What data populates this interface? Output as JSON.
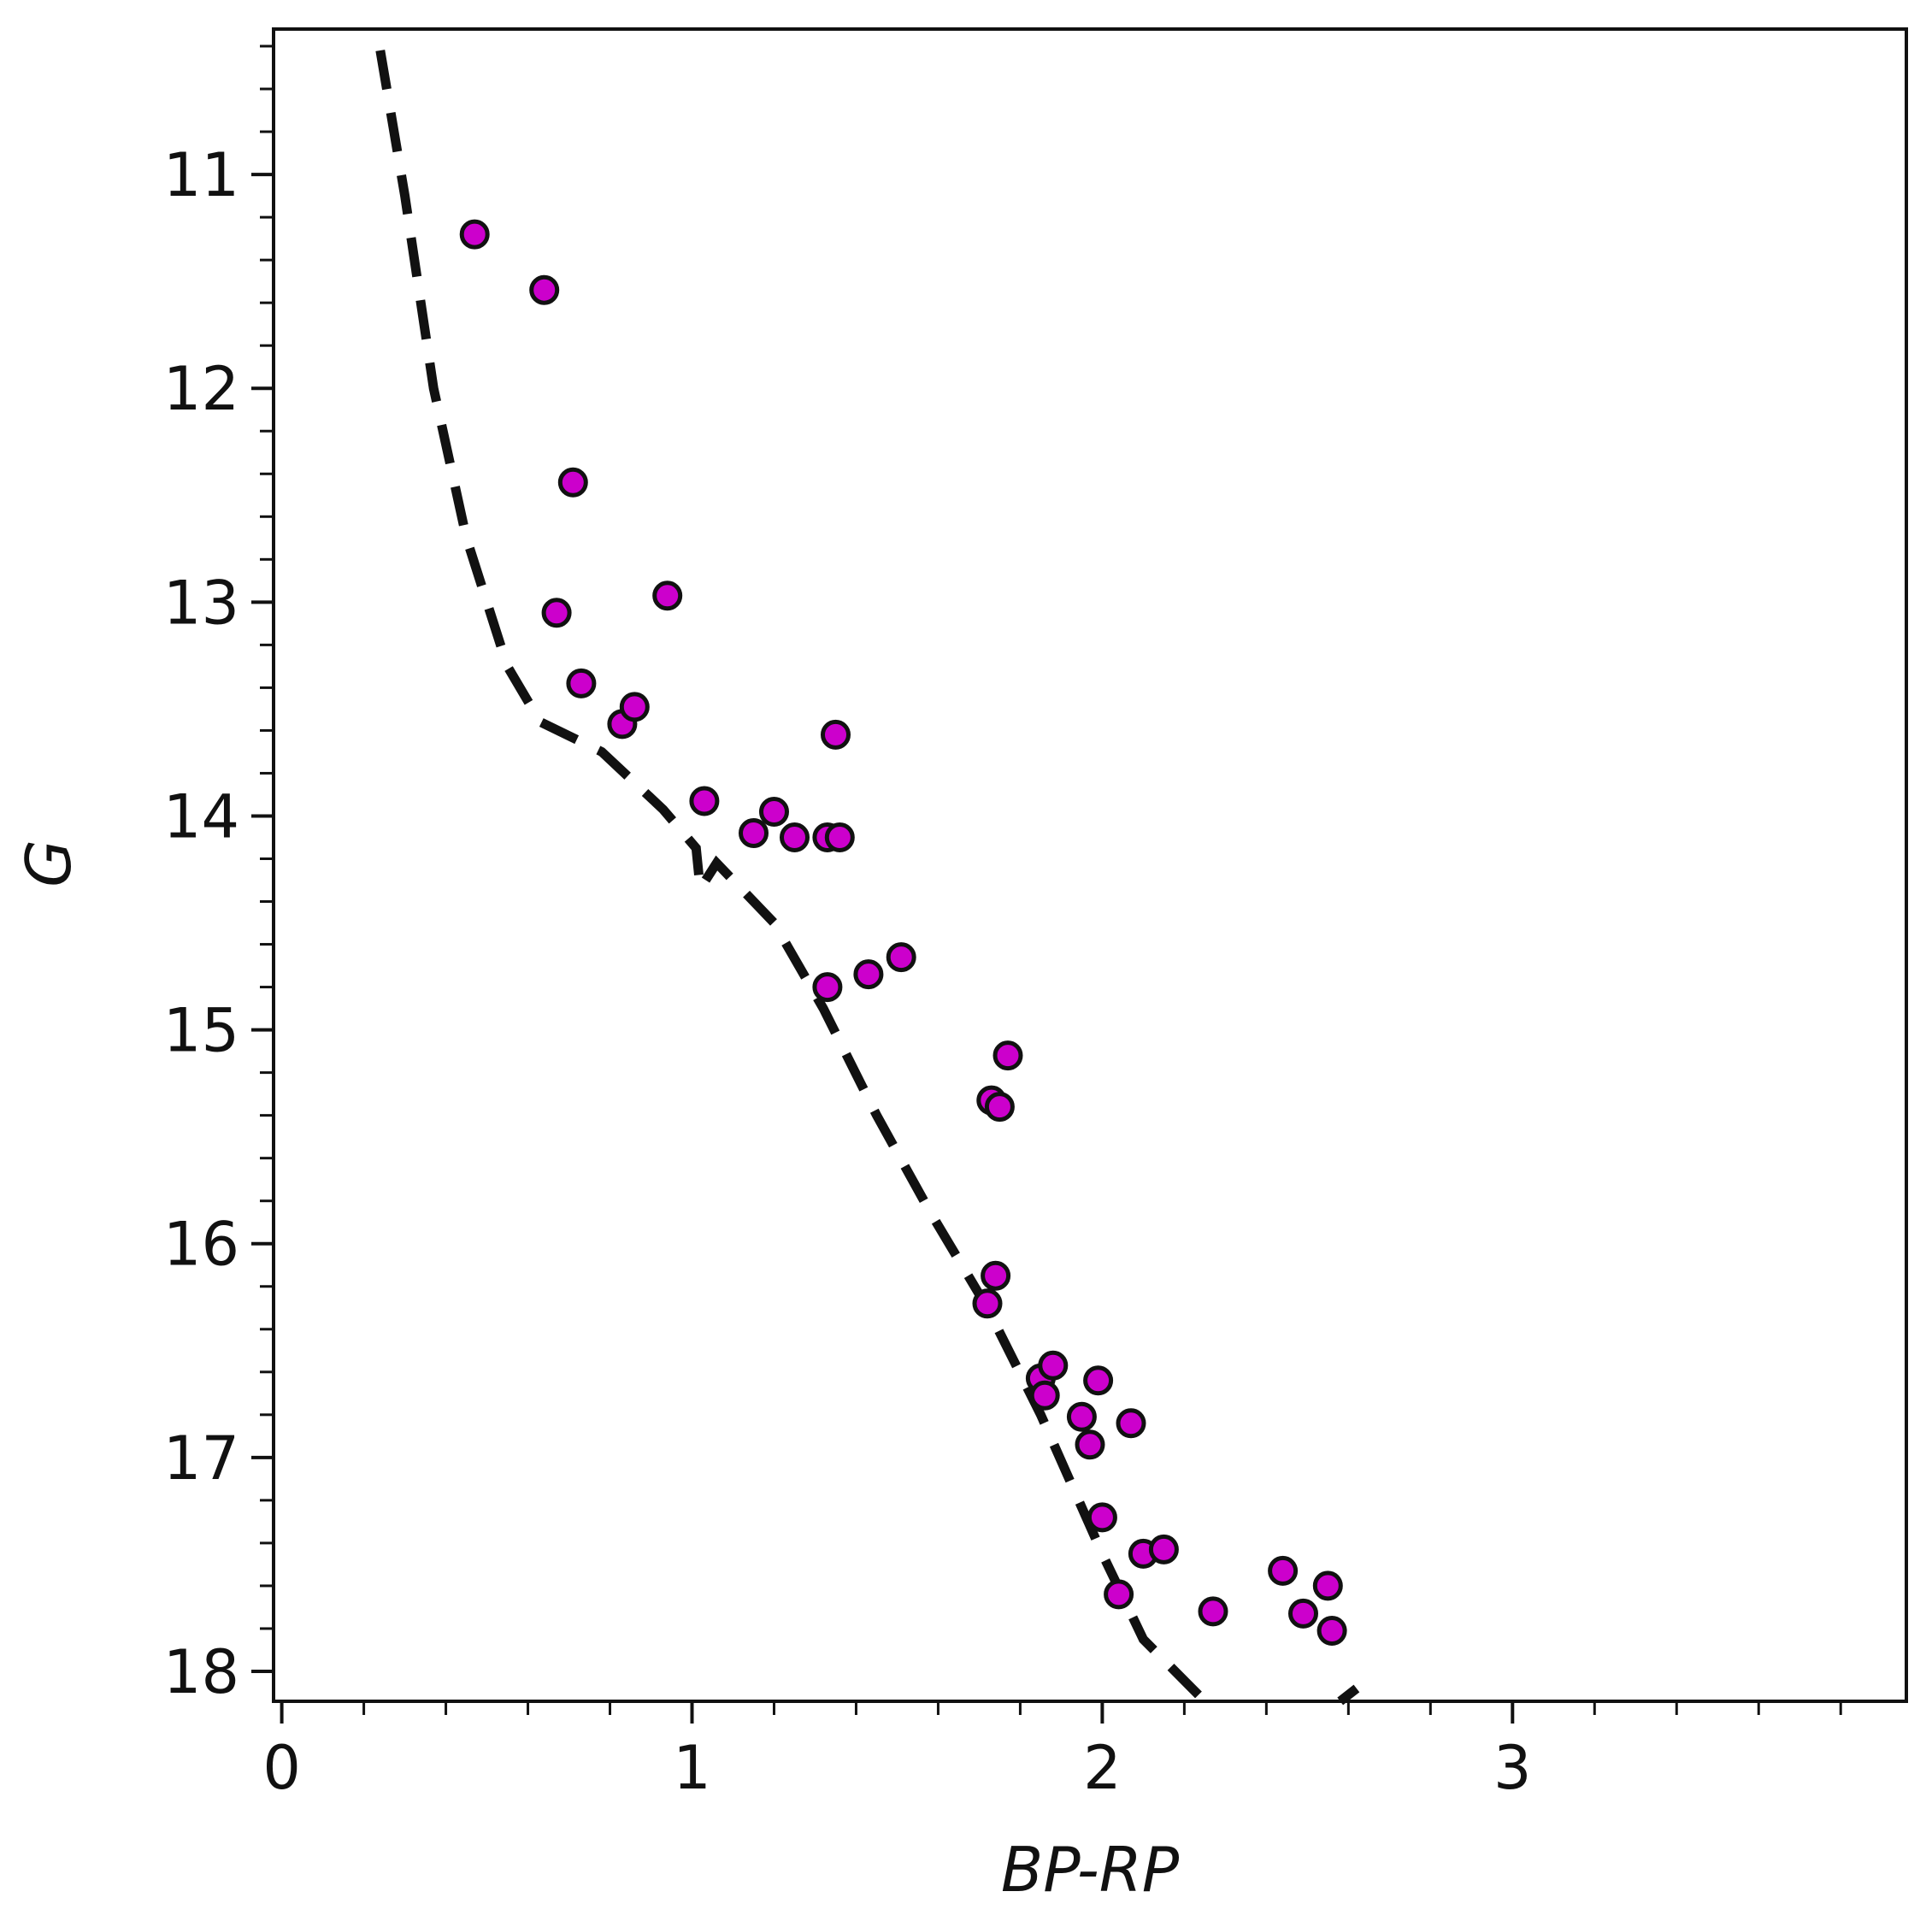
{
  "chart_data": {
    "type": "scatter",
    "title": "",
    "xlabel": "BP-RP",
    "ylabel": "G",
    "xlim": [
      -0.02,
      3.96
    ],
    "ylim": [
      18.14,
      10.32
    ],
    "y_inverted": true,
    "grid": false,
    "legend": "none",
    "x_major_ticks": [
      0,
      1,
      2,
      3
    ],
    "x_tick_labels": [
      "0",
      "1",
      "2",
      "3"
    ],
    "x_minor_step": 0.2,
    "y_major_ticks": [
      11,
      12,
      13,
      14,
      15,
      16,
      17,
      18
    ],
    "y_tick_labels": [
      "11",
      "12",
      "13",
      "14",
      "15",
      "16",
      "17",
      "18"
    ],
    "y_minor_step": 0.2,
    "series": [
      {
        "type": "scatter",
        "marker_color": "#cc00cc",
        "edge_color": "#111111",
        "points": [
          {
            "x": 0.47,
            "y": 11.28
          },
          {
            "x": 0.64,
            "y": 11.54
          },
          {
            "x": 0.71,
            "y": 12.44
          },
          {
            "x": 0.67,
            "y": 13.05
          },
          {
            "x": 0.94,
            "y": 12.97
          },
          {
            "x": 0.73,
            "y": 13.38
          },
          {
            "x": 0.83,
            "y": 13.57
          },
          {
            "x": 0.86,
            "y": 13.49
          },
          {
            "x": 1.35,
            "y": 13.62
          },
          {
            "x": 1.03,
            "y": 13.93
          },
          {
            "x": 1.15,
            "y": 14.08
          },
          {
            "x": 1.2,
            "y": 13.98
          },
          {
            "x": 1.25,
            "y": 14.1
          },
          {
            "x": 1.33,
            "y": 14.1
          },
          {
            "x": 1.36,
            "y": 14.1
          },
          {
            "x": 1.33,
            "y": 14.8
          },
          {
            "x": 1.43,
            "y": 14.74
          },
          {
            "x": 1.51,
            "y": 14.66
          },
          {
            "x": 1.77,
            "y": 15.12
          },
          {
            "x": 1.73,
            "y": 15.33
          },
          {
            "x": 1.75,
            "y": 15.36
          },
          {
            "x": 1.74,
            "y": 16.15
          },
          {
            "x": 1.72,
            "y": 16.28
          },
          {
            "x": 1.85,
            "y": 16.63
          },
          {
            "x": 1.88,
            "y": 16.57
          },
          {
            "x": 1.86,
            "y": 16.71
          },
          {
            "x": 1.99,
            "y": 16.64
          },
          {
            "x": 1.95,
            "y": 16.81
          },
          {
            "x": 2.07,
            "y": 16.84
          },
          {
            "x": 1.97,
            "y": 16.94
          },
          {
            "x": 2.0,
            "y": 17.28
          },
          {
            "x": 2.1,
            "y": 17.45
          },
          {
            "x": 2.15,
            "y": 17.43
          },
          {
            "x": 2.04,
            "y": 17.64
          },
          {
            "x": 2.27,
            "y": 17.72
          },
          {
            "x": 2.44,
            "y": 17.53
          },
          {
            "x": 2.55,
            "y": 17.6
          },
          {
            "x": 2.49,
            "y": 17.73
          },
          {
            "x": 2.56,
            "y": 17.81
          }
        ]
      },
      {
        "type": "line",
        "style": "dashed",
        "color": "#111111",
        "points": [
          {
            "x": 0.24,
            "y": 10.42
          },
          {
            "x": 0.3,
            "y": 11.1
          },
          {
            "x": 0.37,
            "y": 12.0
          },
          {
            "x": 0.45,
            "y": 12.7
          },
          {
            "x": 0.55,
            "y": 13.3
          },
          {
            "x": 0.63,
            "y": 13.56
          },
          {
            "x": 0.78,
            "y": 13.7
          },
          {
            "x": 0.93,
            "y": 13.97
          },
          {
            "x": 1.01,
            "y": 14.15
          },
          {
            "x": 1.02,
            "y": 14.34
          },
          {
            "x": 1.06,
            "y": 14.22
          },
          {
            "x": 1.2,
            "y": 14.5
          },
          {
            "x": 1.32,
            "y": 14.9
          },
          {
            "x": 1.45,
            "y": 15.4
          },
          {
            "x": 1.58,
            "y": 15.85
          },
          {
            "x": 1.72,
            "y": 16.3
          },
          {
            "x": 1.85,
            "y": 16.8
          },
          {
            "x": 2.0,
            "y": 17.45
          },
          {
            "x": 2.1,
            "y": 17.85
          },
          {
            "x": 2.25,
            "y": 18.14
          }
        ]
      },
      {
        "type": "line",
        "style": "dashed",
        "color": "#111111",
        "points": [
          {
            "x": 2.58,
            "y": 18.14
          },
          {
            "x": 2.62,
            "y": 18.08
          }
        ]
      }
    ]
  }
}
